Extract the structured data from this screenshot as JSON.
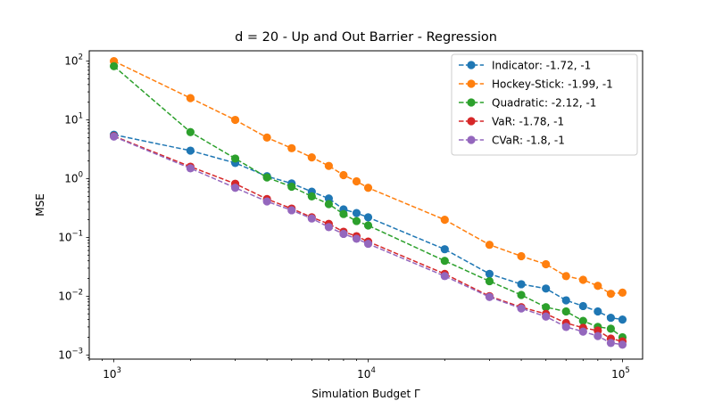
{
  "chart_data": {
    "type": "line",
    "title": "d = 20 - Up and Out Barrier - Regression",
    "xlabel": "Simulation Budget Γ",
    "ylabel": "MSE",
    "xscale": "log",
    "yscale": "log",
    "xlim": [
      800,
      120000
    ],
    "ylim": [
      0.00085,
      150
    ],
    "x_ticks": [
      {
        "value": 1000,
        "base": "10",
        "exp": "3"
      },
      {
        "value": 10000,
        "base": "10",
        "exp": "4"
      },
      {
        "value": 100000,
        "base": "10",
        "exp": "5"
      }
    ],
    "y_ticks": [
      {
        "value": 0.001,
        "base": "10",
        "exp": "−3"
      },
      {
        "value": 0.01,
        "base": "10",
        "exp": "−2"
      },
      {
        "value": 0.1,
        "base": "10",
        "exp": "−1"
      },
      {
        "value": 1,
        "base": "10",
        "exp": "0"
      },
      {
        "value": 10,
        "base": "10",
        "exp": "1"
      },
      {
        "value": 100,
        "base": "10",
        "exp": "2"
      }
    ],
    "grid": false,
    "legend_position": "top-right",
    "x": [
      1000,
      2000,
      3000,
      4000,
      5000,
      6000,
      7000,
      8000,
      9000,
      10000,
      20000,
      30000,
      40000,
      50000,
      60000,
      70000,
      80000,
      90000,
      100000
    ],
    "series": [
      {
        "name": "Indicator: -1.72, -1",
        "color": "#1f77b4",
        "values": [
          5.6,
          3.0,
          1.85,
          1.1,
          0.83,
          0.6,
          0.46,
          0.3,
          0.26,
          0.22,
          0.063,
          0.024,
          0.016,
          0.0135,
          0.0085,
          0.0068,
          0.0055,
          0.0043,
          0.004
        ]
      },
      {
        "name": "Hockey-Stick: -1.99, -1",
        "color": "#ff7f0e",
        "values": [
          100,
          23.5,
          10.0,
          5.0,
          3.3,
          2.3,
          1.65,
          1.15,
          0.9,
          0.7,
          0.2,
          0.075,
          0.048,
          0.035,
          0.022,
          0.019,
          0.015,
          0.011,
          0.0115
        ]
      },
      {
        "name": "Quadratic: -2.12, -1",
        "color": "#2ca02c",
        "values": [
          82,
          6.2,
          2.2,
          1.05,
          0.73,
          0.5,
          0.37,
          0.25,
          0.19,
          0.16,
          0.04,
          0.018,
          0.0105,
          0.0065,
          0.0055,
          0.0038,
          0.003,
          0.0028,
          0.002
        ]
      },
      {
        "name": "VaR: -1.78, -1",
        "color": "#d62728",
        "values": [
          5.3,
          1.6,
          0.82,
          0.45,
          0.31,
          0.22,
          0.17,
          0.125,
          0.105,
          0.085,
          0.024,
          0.01,
          0.0065,
          0.005,
          0.0035,
          0.0029,
          0.0026,
          0.0019,
          0.0017
        ]
      },
      {
        "name": "CVaR: -1.8, -1",
        "color": "#9467bd",
        "values": [
          5.2,
          1.5,
          0.7,
          0.41,
          0.29,
          0.21,
          0.15,
          0.115,
          0.095,
          0.078,
          0.022,
          0.0097,
          0.0062,
          0.0045,
          0.003,
          0.0025,
          0.0021,
          0.0016,
          0.0015
        ]
      }
    ]
  }
}
